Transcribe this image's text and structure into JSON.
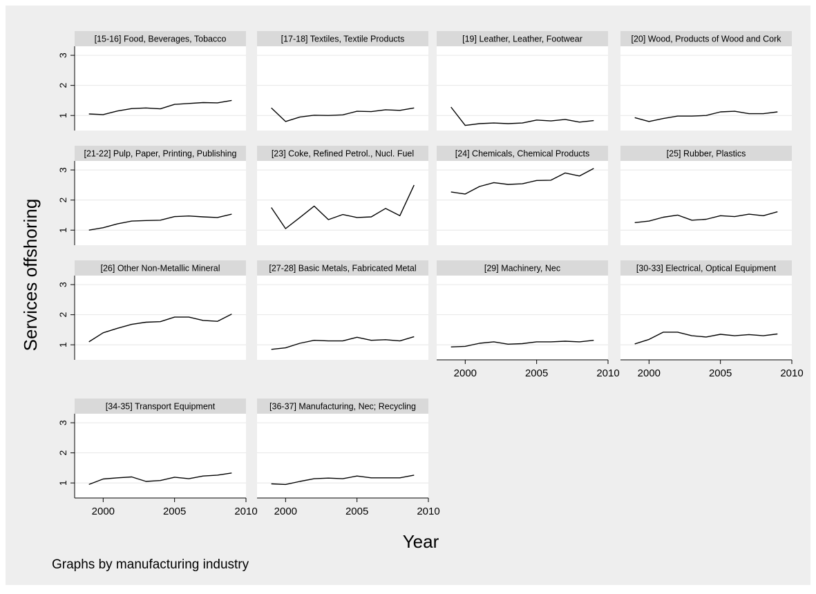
{
  "figure": {
    "ylabel": "Services offshoring",
    "xlabel": "Year",
    "note": "Graphs by manufacturing industry"
  },
  "chart_data": {
    "type": "line",
    "xlabel": "Year",
    "ylabel": "Services offshoring",
    "note": "Graphs by manufacturing industry",
    "xlim": [
      1998,
      2010
    ],
    "ylim": [
      0.5,
      3.3
    ],
    "xticks": [
      "2000",
      "2005",
      "2010"
    ],
    "yticks": [
      "1",
      "2",
      "3"
    ],
    "grid": true,
    "x": [
      1999,
      2000,
      2001,
      2002,
      2003,
      2004,
      2005,
      2006,
      2007,
      2008,
      2009
    ],
    "panels": [
      {
        "title": "[15-16] Food, Beverages, Tobacco",
        "values": [
          1.05,
          1.03,
          1.15,
          1.23,
          1.25,
          1.22,
          1.37,
          1.4,
          1.43,
          1.42,
          1.5
        ]
      },
      {
        "title": "[17-18] Textiles, Textile Products",
        "values": [
          1.25,
          0.8,
          0.95,
          1.01,
          1.0,
          1.02,
          1.14,
          1.13,
          1.19,
          1.17,
          1.25
        ]
      },
      {
        "title": "[19] Leather, Leather, Footwear",
        "values": [
          1.28,
          0.67,
          0.73,
          0.75,
          0.73,
          0.75,
          0.85,
          0.82,
          0.87,
          0.78,
          0.83
        ]
      },
      {
        "title": "[20] Wood, Products of Wood and Cork",
        "values": [
          0.93,
          0.8,
          0.9,
          0.98,
          0.98,
          1.0,
          1.12,
          1.14,
          1.06,
          1.06,
          1.12
        ]
      },
      {
        "title": "[21-22] Pulp, Paper, Printing, Publishing",
        "values": [
          1.0,
          1.08,
          1.21,
          1.3,
          1.32,
          1.33,
          1.45,
          1.47,
          1.44,
          1.42,
          1.53
        ]
      },
      {
        "title": "[23] Coke, Refined Petrol., Nucl. Fuel",
        "values": [
          1.75,
          1.05,
          1.42,
          1.8,
          1.35,
          1.52,
          1.42,
          1.44,
          1.72,
          1.48,
          2.5
        ]
      },
      {
        "title": "[24] Chemicals, Chemical Products",
        "values": [
          2.27,
          2.2,
          2.45,
          2.58,
          2.52,
          2.54,
          2.65,
          2.66,
          2.9,
          2.8,
          3.05
        ]
      },
      {
        "title": "[25] Rubber, Plastics",
        "values": [
          1.25,
          1.3,
          1.43,
          1.5,
          1.33,
          1.36,
          1.48,
          1.45,
          1.53,
          1.48,
          1.61
        ]
      },
      {
        "title": "[26] Other Non-Metallic Mineral",
        "values": [
          1.1,
          1.4,
          1.55,
          1.68,
          1.75,
          1.77,
          1.92,
          1.92,
          1.81,
          1.78,
          2.02
        ]
      },
      {
        "title": "[27-28] Basic Metals, Fabricated Metal",
        "values": [
          0.85,
          0.9,
          1.05,
          1.15,
          1.13,
          1.13,
          1.25,
          1.15,
          1.17,
          1.13,
          1.27
        ]
      },
      {
        "title": "[29] Machinery, Nec",
        "values": [
          0.93,
          0.95,
          1.05,
          1.1,
          1.02,
          1.04,
          1.1,
          1.1,
          1.12,
          1.1,
          1.15
        ]
      },
      {
        "title": "[30-33] Electrical, Optical Equipment",
        "values": [
          1.03,
          1.18,
          1.42,
          1.42,
          1.3,
          1.26,
          1.35,
          1.3,
          1.34,
          1.3,
          1.36
        ]
      },
      {
        "title": "[34-35] Transport Equipment",
        "values": [
          0.95,
          1.13,
          1.17,
          1.2,
          1.05,
          1.08,
          1.19,
          1.14,
          1.23,
          1.26,
          1.33
        ]
      },
      {
        "title": "[36-37] Manufacturing, Nec; Recycling",
        "values": [
          0.97,
          0.95,
          1.05,
          1.14,
          1.16,
          1.14,
          1.23,
          1.17,
          1.17,
          1.17,
          1.26
        ]
      }
    ]
  }
}
